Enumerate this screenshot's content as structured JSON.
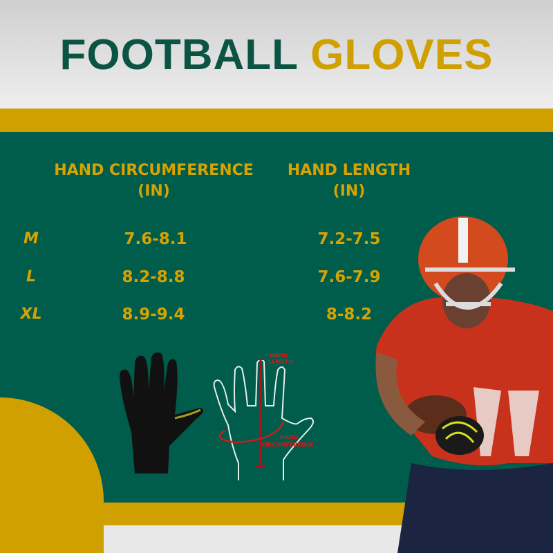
{
  "title": {
    "part1": "FOOTBALL",
    "part2": "GLOVES"
  },
  "table": {
    "headers": [
      {
        "line1": "HAND CIRCUMFERENCE",
        "line2": "(IN)"
      },
      {
        "line1": "HAND LENGTH",
        "line2": "(IN)"
      }
    ],
    "rows": [
      {
        "size": "M",
        "circumference": "7.6-8.1",
        "length": "7.2-7.5"
      },
      {
        "size": "L",
        "circumference": "8.2-8.8",
        "length": "7.6-7.9"
      },
      {
        "size": "XL",
        "circumference": "8.9-9.4",
        "length": "8-8.2"
      }
    ]
  },
  "diagram": {
    "length_label": {
      "line1": "HAND",
      "line2": "LENGTH"
    },
    "circumference_label": {
      "line1": "HAND",
      "line2": "CIRCUMFERENCE"
    }
  },
  "colors": {
    "green": "#005c4b",
    "gold": "#d0a000",
    "title_green": "#0b5443",
    "measure_red": "#d01a1a"
  }
}
